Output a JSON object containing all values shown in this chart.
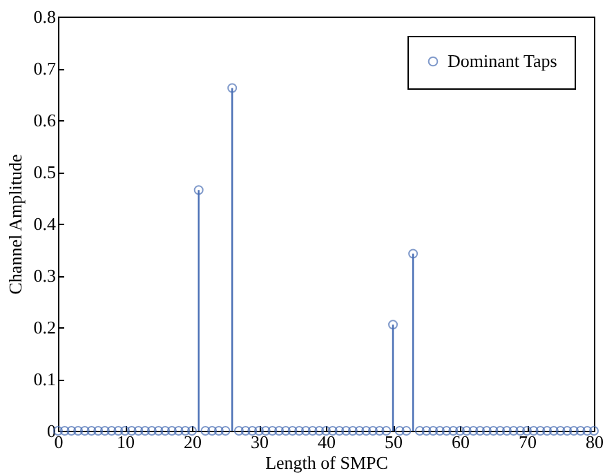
{
  "chart_data": {
    "type": "lollipop",
    "xlabel": "Length of SMPC",
    "ylabel": "Channel Amplitude",
    "x": [
      0,
      1,
      2,
      3,
      4,
      5,
      6,
      7,
      8,
      9,
      10,
      11,
      12,
      13,
      14,
      15,
      16,
      17,
      18,
      19,
      20,
      21,
      22,
      23,
      24,
      25,
      26,
      27,
      28,
      29,
      30,
      31,
      32,
      33,
      34,
      35,
      36,
      37,
      38,
      39,
      40,
      41,
      42,
      43,
      44,
      45,
      46,
      47,
      48,
      49,
      50,
      51,
      52,
      53,
      54,
      55,
      56,
      57,
      58,
      59,
      60,
      61,
      62,
      63,
      64,
      65,
      66,
      67,
      68,
      69,
      70,
      71,
      72,
      73,
      74,
      75,
      76,
      77,
      78,
      79,
      80
    ],
    "series": [
      {
        "name": "Dominant Taps",
        "color": "#4a6fb5",
        "values": [
          0,
          0,
          0,
          0,
          0,
          0,
          0,
          0,
          0,
          0,
          0,
          0,
          0,
          0,
          0,
          0,
          0,
          0,
          0,
          0,
          0,
          0.465,
          0,
          0,
          0,
          0,
          0.662,
          0,
          0,
          0,
          0,
          0,
          0,
          0,
          0,
          0,
          0,
          0,
          0,
          0,
          0,
          0,
          0,
          0,
          0,
          0,
          0,
          0,
          0,
          0,
          0.205,
          0,
          0,
          0.342,
          0,
          0,
          0,
          0,
          0,
          0,
          0,
          0,
          0,
          0,
          0,
          0,
          0,
          0,
          0,
          0,
          0,
          0,
          0,
          0,
          0,
          0,
          0,
          0,
          0,
          0,
          0
        ]
      }
    ],
    "xlim": [
      0,
      80
    ],
    "xticks": [
      0,
      10,
      20,
      30,
      40,
      50,
      60,
      70,
      80
    ],
    "ylim": [
      0,
      0.8
    ],
    "yticks": [
      0,
      0.1,
      0.2,
      0.3,
      0.4,
      0.5,
      0.6,
      0.7,
      0.8
    ],
    "grid": false,
    "legend": "top right",
    "marker": "circle"
  }
}
